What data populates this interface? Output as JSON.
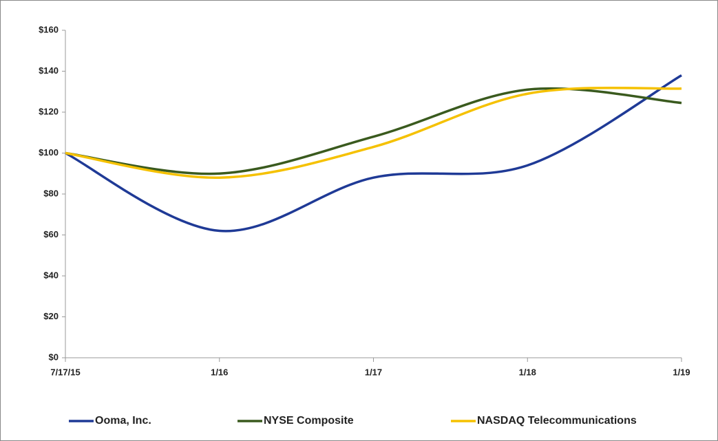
{
  "chart_data": {
    "type": "line",
    "categories": [
      "7/17/15",
      "1/16",
      "1/17",
      "1/18",
      "1/19"
    ],
    "series": [
      {
        "name": "Ooma, Inc.",
        "color": "#1f3a96",
        "values": [
          100,
          62,
          88,
          94,
          138
        ]
      },
      {
        "name": "NYSE Composite",
        "color": "#3a5a1e",
        "values": [
          100,
          90,
          108,
          131,
          124.5
        ]
      },
      {
        "name": "NASDAQ Telecommunications",
        "color": "#f5c100",
        "values": [
          100,
          88,
          103,
          129,
          131.5
        ]
      }
    ],
    "ylim": [
      0,
      160
    ],
    "yticks": [
      {
        "value": 0,
        "label": "$0"
      },
      {
        "value": 20,
        "label": "$20"
      },
      {
        "value": 40,
        "label": "$40"
      },
      {
        "value": 60,
        "label": "$60"
      },
      {
        "value": 80,
        "label": "$80"
      },
      {
        "value": 100,
        "label": "$100"
      },
      {
        "value": 120,
        "label": "$120"
      },
      {
        "value": 140,
        "label": "$140"
      },
      {
        "value": 160,
        "label": "$160"
      }
    ],
    "grid": false,
    "legend": "bottom"
  }
}
